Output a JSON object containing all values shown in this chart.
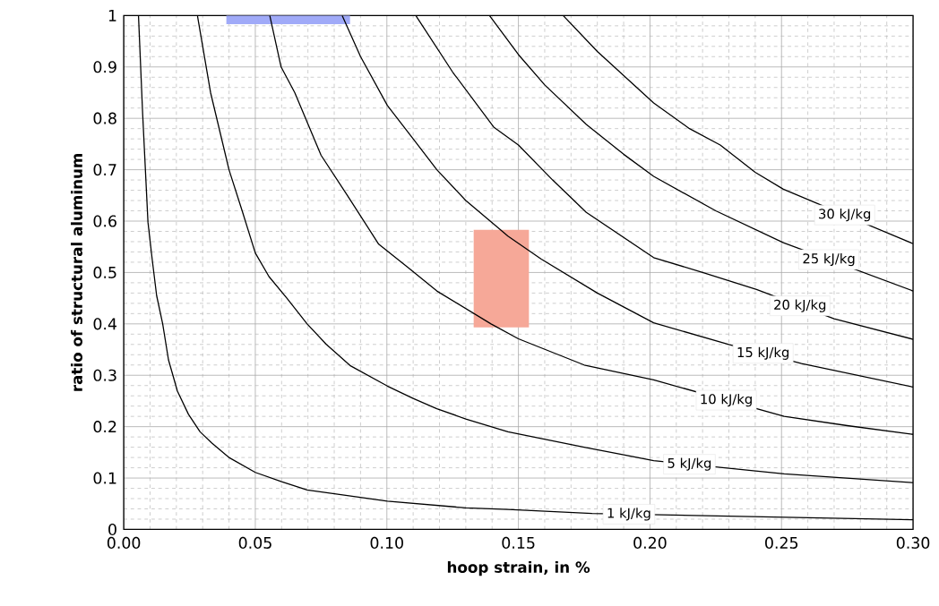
{
  "chart_data": {
    "type": "line",
    "xlabel": "hoop strain, in %",
    "ylabel": "ratio of structural aluminum",
    "xlim": [
      0,
      0.3
    ],
    "ylim": [
      0,
      1
    ],
    "xticks": [
      {
        "value": 0,
        "label": "0.00"
      },
      {
        "value": 0.05,
        "label": "0.05"
      },
      {
        "value": 0.1,
        "label": "0.10"
      },
      {
        "value": 0.15,
        "label": "0.15"
      },
      {
        "value": 0.2,
        "label": "0.20"
      },
      {
        "value": 0.25,
        "label": "0.25"
      },
      {
        "value": 0.3,
        "label": "0.30"
      }
    ],
    "yticks": [
      0,
      0.1,
      0.2,
      0.3,
      0.4,
      0.5,
      0.6,
      0.7,
      0.8,
      0.9,
      1
    ],
    "grid": true,
    "marker": "none",
    "line_style": "solid",
    "series": [
      {
        "color": "#a0aaf8",
        "x": [
          0.039,
          0.086
        ],
        "values": [
          null,
          null
        ],
        "lower": [
          0.983,
          0.983
        ],
        "upper": [
          1.0,
          1.0
        ]
      },
      {
        "color": "#f6a898",
        "x": [
          0.133,
          0.154
        ],
        "values": [
          null,
          null
        ],
        "lower": [
          0.393,
          0.393
        ],
        "upper": [
          0.583,
          0.583
        ]
      },
      {
        "name": "1 kJ/kg",
        "color": "#000000",
        "x": [
          0.0056,
          0.0072,
          0.0092,
          0.0108,
          0.0125,
          0.0148,
          0.017,
          0.0204,
          0.0246,
          0.029,
          0.0335,
          0.04,
          0.05,
          0.06,
          0.0697,
          0.085,
          0.1002,
          0.13,
          0.146,
          0.178,
          0.3
        ],
        "values": [
          1.0,
          0.807,
          0.598,
          0.526,
          0.455,
          0.4,
          0.33,
          0.269,
          0.224,
          0.19,
          0.168,
          0.14,
          0.111,
          0.093,
          0.077,
          0.066,
          0.055,
          0.042,
          0.039,
          0.031,
          0.019
        ]
      },
      {
        "name": "5 kJ/kg",
        "color": "#000000",
        "x": [
          0.028,
          0.033,
          0.04,
          0.045,
          0.05,
          0.0552,
          0.062,
          0.0697,
          0.077,
          0.086,
          0.1002,
          0.11,
          0.119,
          0.13,
          0.146,
          0.175,
          0.2014,
          0.251,
          0.3
        ],
        "values": [
          1.0,
          0.85,
          0.7,
          0.62,
          0.538,
          0.492,
          0.45,
          0.4,
          0.36,
          0.319,
          0.279,
          0.255,
          0.235,
          0.215,
          0.19,
          0.16,
          0.134,
          0.108,
          0.091
        ]
      },
      {
        "name": "10 kJ/kg",
        "color": "#000000",
        "x": [
          0.0555,
          0.0598,
          0.065,
          0.075,
          0.085,
          0.0969,
          0.108,
          0.119,
          0.1396,
          0.15,
          0.175,
          0.2014,
          0.251,
          0.275,
          0.3
        ],
        "values": [
          1.0,
          0.9,
          0.85,
          0.728,
          0.65,
          0.555,
          0.51,
          0.464,
          0.4,
          0.371,
          0.32,
          0.291,
          0.22,
          0.202,
          0.185
        ]
      },
      {
        "name": "15 kJ/kg",
        "color": "#000000",
        "x": [
          0.083,
          0.09,
          0.1002,
          0.11,
          0.119,
          0.13,
          0.146,
          0.1587,
          0.18,
          0.2014,
          0.23,
          0.2576,
          0.3
        ],
        "values": [
          1.0,
          0.92,
          0.825,
          0.76,
          0.7,
          0.64,
          0.571,
          0.526,
          0.46,
          0.402,
          0.36,
          0.323,
          0.277
        ]
      },
      {
        "name": "20 kJ/kg",
        "color": "#000000",
        "x": [
          0.111,
          0.125,
          0.1406,
          0.15,
          0.163,
          0.1758,
          0.2014,
          0.22,
          0.2405,
          0.27,
          0.3
        ],
        "values": [
          1.0,
          0.89,
          0.783,
          0.748,
          0.68,
          0.617,
          0.529,
          0.5,
          0.467,
          0.41,
          0.37
        ]
      },
      {
        "name": "25 kJ/kg",
        "color": "#000000",
        "x": [
          0.139,
          0.15,
          0.16,
          0.1758,
          0.19,
          0.2014,
          0.225,
          0.2507,
          0.3
        ],
        "values": [
          1.0,
          0.924,
          0.865,
          0.788,
          0.73,
          0.687,
          0.62,
          0.558,
          0.464
        ]
      },
      {
        "name": "30 kJ/kg",
        "color": "#000000",
        "x": [
          0.167,
          0.18,
          0.2014,
          0.215,
          0.2267,
          0.24,
          0.2507,
          0.3
        ],
        "values": [
          1.0,
          0.93,
          0.83,
          0.78,
          0.748,
          0.695,
          0.662,
          0.556
        ]
      }
    ]
  }
}
